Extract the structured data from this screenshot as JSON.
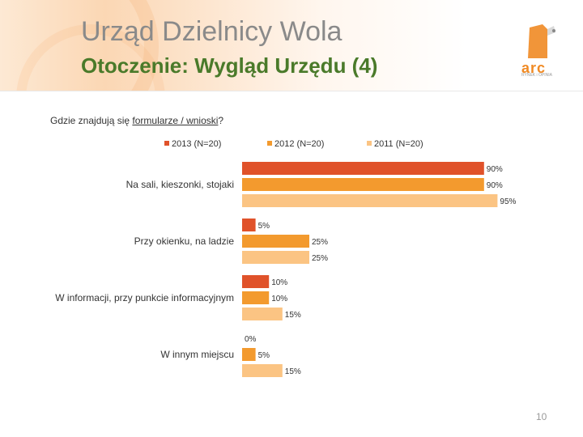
{
  "header": {
    "title": "Urząd Dzielnicy Wola",
    "subtitle": "Otoczenie: Wygląd Urzędu (4)",
    "logo_text": "arc",
    "logo_sub": "RYNEK i OPINIA"
  },
  "question": {
    "prefix": "Gdzie znajdują się ",
    "underlined": "formularze / wnioski",
    "suffix": "?"
  },
  "page_number": "10",
  "colors": {
    "title": "#8a8a8a",
    "subtitle": "#4a7a2a",
    "accent": "#f08a24"
  },
  "chart_data": {
    "type": "bar",
    "orientation": "horizontal",
    "categories": [
      "Na sali, kieszonki, stojaki",
      "Przy okienku, na ladzie",
      "W informacji, przy punkcie informacyjnym",
      "W innym miejscu"
    ],
    "series": [
      {
        "name": "2013 (N=20)",
        "color": "#e0522a",
        "values": [
          90,
          5,
          10,
          0
        ]
      },
      {
        "name": "2012 (N=20)",
        "color": "#f39a2e",
        "values": [
          90,
          25,
          10,
          5
        ]
      },
      {
        "name": "2011 (N=20)",
        "color": "#fbc483",
        "values": [
          95,
          25,
          15,
          15
        ]
      }
    ],
    "value_suffix": "%",
    "xlim": [
      0,
      100
    ],
    "legend_position": "top",
    "grid": false
  }
}
